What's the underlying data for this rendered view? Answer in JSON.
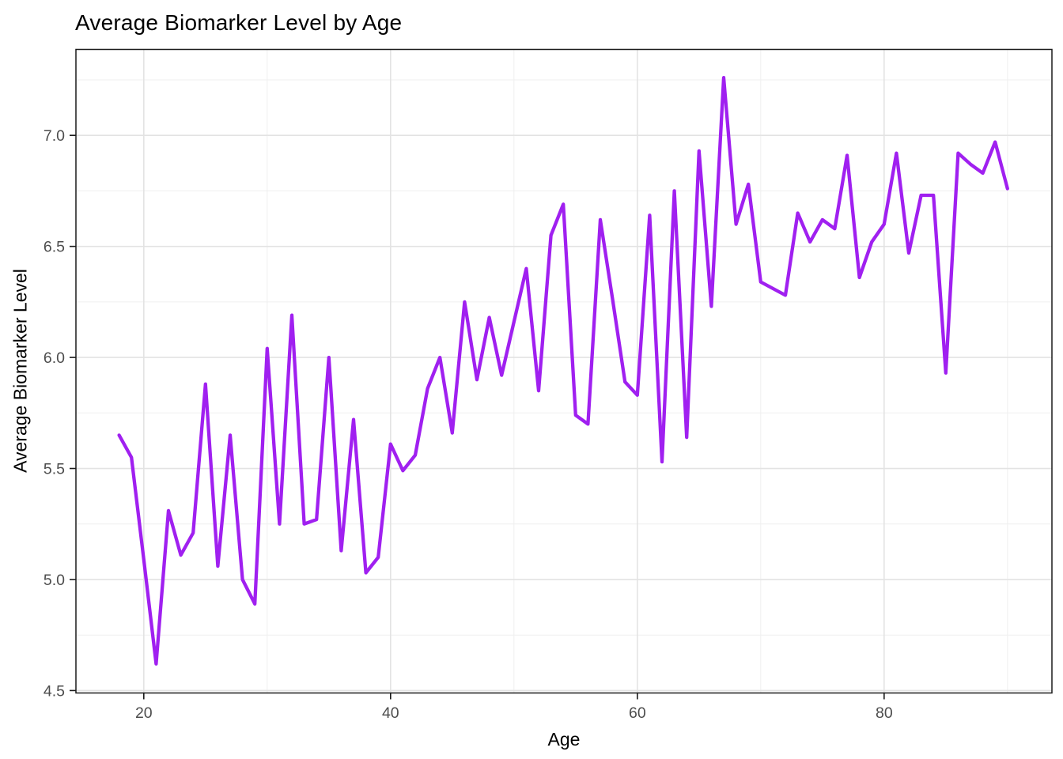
{
  "page": {
    "background": "#FFFFFF"
  },
  "chart_data": {
    "type": "line",
    "title": "Average Biomarker Level by Age",
    "xlabel": "Age",
    "ylabel": "Average Biomarker Level",
    "legend": "none",
    "grid": true,
    "xlim": [
      14.5,
      93.6
    ],
    "ylim": [
      4.489,
      7.387
    ],
    "x_ticks": [
      20,
      40,
      60,
      80
    ],
    "y_ticks": [
      4.5,
      5.0,
      5.5,
      6.0,
      6.5,
      7.0
    ],
    "x_minor_gridlines": [
      30,
      50,
      70,
      90
    ],
    "y_minor_gridlines": [
      4.75,
      5.25,
      5.75,
      6.25,
      6.75,
      7.25
    ],
    "series": [
      {
        "name": "Average Biomarker Level",
        "x": [
          18,
          19,
          20,
          21,
          22,
          23,
          24,
          25,
          26,
          27,
          28,
          29,
          30,
          31,
          32,
          33,
          34,
          35,
          36,
          37,
          38,
          39,
          40,
          41,
          42,
          43,
          44,
          45,
          46,
          47,
          48,
          49,
          50,
          51,
          52,
          53,
          54,
          55,
          56,
          57,
          58,
          59,
          60,
          61,
          62,
          63,
          64,
          65,
          66,
          67,
          68,
          69,
          70,
          71,
          72,
          73,
          74,
          75,
          76,
          77,
          78,
          79,
          80,
          81,
          82,
          83,
          84,
          85,
          86,
          87,
          88,
          89,
          90
        ],
        "y": [
          5.65,
          5.55,
          5.09,
          4.62,
          5.31,
          5.11,
          5.21,
          5.88,
          5.06,
          5.65,
          5.0,
          4.89,
          6.04,
          5.25,
          6.19,
          5.25,
          5.27,
          6.0,
          5.13,
          5.72,
          5.03,
          5.1,
          5.61,
          5.49,
          5.56,
          5.86,
          6.0,
          5.66,
          6.25,
          5.9,
          6.18,
          5.92,
          6.16,
          6.4,
          5.85,
          6.55,
          6.69,
          5.74,
          5.7,
          6.62,
          6.26,
          5.89,
          5.83,
          6.64,
          5.53,
          6.75,
          5.64,
          6.93,
          6.23,
          7.26,
          6.6,
          6.78,
          6.34,
          6.31,
          6.28,
          6.65,
          6.52,
          6.62,
          6.58,
          6.91,
          6.36,
          6.52,
          6.6,
          6.92,
          6.47,
          6.73,
          6.73,
          5.93,
          6.92,
          6.87,
          6.83,
          6.97,
          6.76
        ]
      }
    ],
    "colors": {
      "line": "#A020F0",
      "panel_background": "#FFFFFF",
      "grid_major": "#E3E3E3",
      "grid_minor": "#EFEFEF",
      "panel_border": "#1A1A1A",
      "tick_mark": "#1A1A1A",
      "axis_text": "#4D4D4D",
      "title_text": "#000000"
    }
  }
}
